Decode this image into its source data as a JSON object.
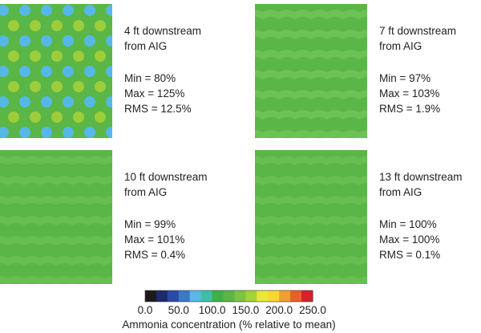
{
  "panels": [
    {
      "title_lines": [
        "4 ft downstream",
        "from AIG"
      ],
      "stats": [
        "Min = 80%",
        "Max = 125%",
        "RMS = 12.5%"
      ]
    },
    {
      "title_lines": [
        "7 ft downstream",
        "from AIG"
      ],
      "stats": [
        "Min = 97%",
        "Max = 103%",
        "RMS = 1.9%"
      ]
    },
    {
      "title_lines": [
        "10 ft downstream",
        "from AIG"
      ],
      "stats": [
        "Min = 99%",
        "Max = 101%",
        "RMS = 0.4%"
      ]
    },
    {
      "title_lines": [
        "13 ft downstream",
        "from AIG"
      ],
      "stats": [
        "Min = 100%",
        "Max = 100%",
        "RMS = 0.1%"
      ]
    }
  ],
  "colorbar": {
    "ticks": [
      "0.0",
      "50.0",
      "100.0",
      "150.0",
      "200.0",
      "250.0"
    ],
    "label": "Ammonia concentration (% relative to mean)"
  }
}
